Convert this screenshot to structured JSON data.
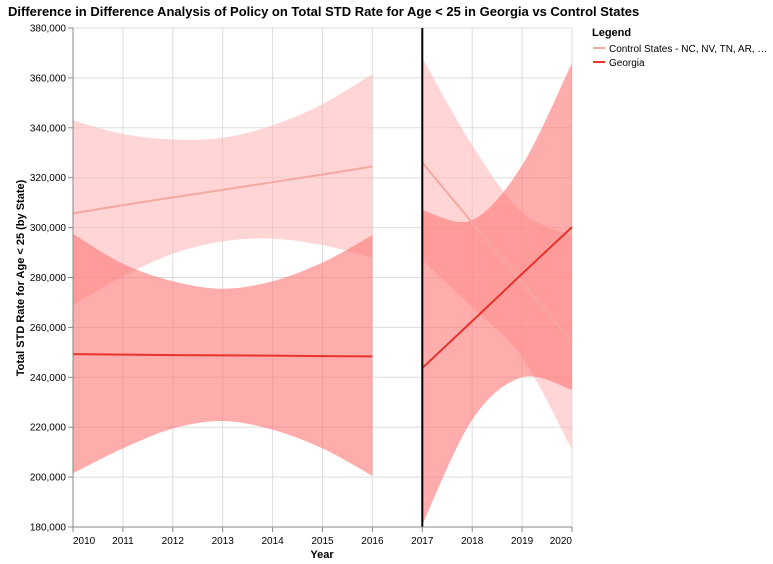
{
  "chart_data": {
    "type": "line",
    "title": "Difference in Difference Analysis of Policy on Total STD Rate for Age < 25 in Georgia vs Control States",
    "xlabel": "Year",
    "ylabel": "Total STD Rate for Age < 25 (by State)",
    "xlim": [
      2010,
      2020
    ],
    "ylim": [
      180000,
      380000
    ],
    "x_ticks": [
      "2010",
      "2011",
      "2012",
      "2013",
      "2014",
      "2015",
      "2016",
      "2017",
      "2018",
      "2019",
      "2020"
    ],
    "y_ticks": [
      "180,000",
      "200,000",
      "220,000",
      "240,000",
      "260,000",
      "280,000",
      "300,000",
      "320,000",
      "340,000",
      "360,000",
      "380,000"
    ],
    "grid": true,
    "policy_year": 2017,
    "legend": {
      "title": "Legend",
      "placement": "top-right",
      "entries": [
        "Control States - NC, NV, TN, AR, …",
        "Georgia"
      ]
    },
    "series": [
      {
        "name": "Control States - NC, NV, TN, AR, …",
        "color": "#f4a9a0",
        "band_color": "#ffb3b3",
        "segments": [
          {
            "x": [
              2010,
              2011,
              2012,
              2013,
              2014,
              2015,
              2016
            ],
            "fit": [
              305700,
              309000,
              312100,
              315100,
              318200,
              321300,
              324500
            ],
            "upper": [
              343000,
              337500,
              335300,
              336000,
              341000,
              349500,
              361500
            ],
            "lower": [
              269000,
              280500,
              289500,
              294500,
              295600,
              293000,
              288000
            ]
          },
          {
            "x": [
              2017,
              2018,
              2019,
              2020
            ],
            "fit": [
              326000,
              302000,
              278000,
              254000
            ],
            "upper": [
              368000,
              333000,
              306000,
              297000
            ],
            "lower": [
              287000,
              268000,
              248000,
              211000
            ]
          }
        ]
      },
      {
        "name": "Georgia",
        "color": "#e8322c",
        "band_color": "#ff7575",
        "segments": [
          {
            "x": [
              2010,
              2011,
              2012,
              2013,
              2014,
              2015,
              2016
            ],
            "fit": [
              249300,
              249100,
              248900,
              248800,
              248700,
              248500,
              248400
            ],
            "upper": [
              297500,
              285500,
              278500,
              275500,
              278500,
              286000,
              297000
            ],
            "lower": [
              201500,
              211500,
              219500,
              222500,
              219000,
              211500,
              200500
            ]
          },
          {
            "x": [
              2017,
              2018,
              2019,
              2020
            ],
            "fit": [
              243700,
              262500,
              281500,
              300200
            ],
            "upper": [
              307000,
              303000,
              325000,
              366000
            ],
            "lower": [
              181000,
              223000,
              240000,
              235000
            ]
          }
        ]
      }
    ]
  }
}
